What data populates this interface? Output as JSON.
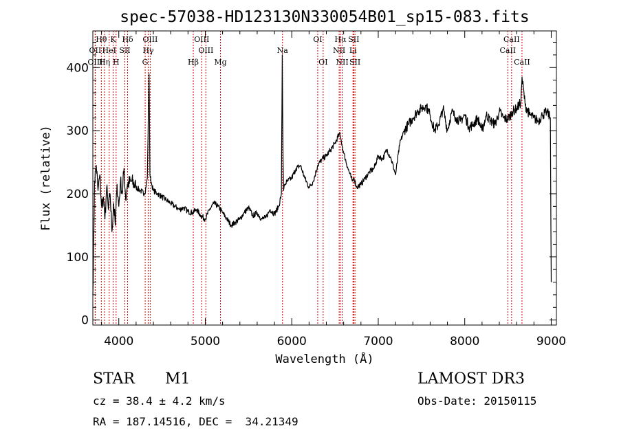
{
  "chart_data": {
    "type": "line",
    "title": "spec-57038-HD123130N330054B01_sp15-083.fits",
    "xlabel": "Wavelength (Å)",
    "ylabel": "Flux (relative)",
    "xlim": [
      3700,
      9060
    ],
    "ylim": [
      -8,
      458
    ],
    "xticks": [
      4000,
      5000,
      6000,
      7000,
      8000,
      9000
    ],
    "yticks": [
      0,
      100,
      200,
      300,
      400
    ],
    "grid": false,
    "series": [
      {
        "x": [
          3700,
          3720,
          3740,
          3760,
          3780,
          3800,
          3820,
          3840,
          3860,
          3880,
          3900,
          3920,
          3940,
          3960,
          3980,
          4000,
          4020,
          4040,
          4060,
          4080,
          4100,
          4150,
          4200,
          4250,
          4300,
          4330,
          4350,
          4360,
          4380,
          4400,
          4450,
          4500,
          4550,
          4600,
          4650,
          4700,
          4750,
          4800,
          4850,
          4900,
          4950,
          5000,
          5050,
          5100,
          5150,
          5200,
          5250,
          5300,
          5350,
          5400,
          5450,
          5500,
          5550,
          5600,
          5650,
          5700,
          5750,
          5800,
          5850,
          5880,
          5890,
          5895,
          5900,
          5905,
          5910,
          5920,
          5950,
          6000,
          6050,
          6100,
          6150,
          6200,
          6250,
          6300,
          6350,
          6400,
          6450,
          6500,
          6550,
          6563,
          6600,
          6650,
          6700,
          6720,
          6750,
          6800,
          6850,
          6900,
          6950,
          7000,
          7050,
          7100,
          7150,
          7200,
          7250,
          7300,
          7350,
          7400,
          7450,
          7500,
          7550,
          7600,
          7650,
          7700,
          7750,
          7800,
          7850,
          7900,
          7950,
          8000,
          8050,
          8100,
          8150,
          8200,
          8250,
          8300,
          8350,
          8400,
          8450,
          8500,
          8550,
          8600,
          8650,
          8662,
          8700,
          8750,
          8800,
          8850,
          8900,
          8950,
          8990,
          9000
        ],
        "y": [
          40,
          220,
          245,
          205,
          230,
          180,
          195,
          160,
          210,
          175,
          200,
          140,
          185,
          150,
          215,
          180,
          220,
          200,
          240,
          190,
          215,
          220,
          210,
          205,
          200,
          225,
          390,
          230,
          215,
          205,
          200,
          195,
          190,
          185,
          180,
          175,
          178,
          172,
          170,
          175,
          165,
          160,
          175,
          185,
          180,
          170,
          160,
          150,
          155,
          160,
          170,
          178,
          165,
          170,
          160,
          162,
          175,
          168,
          180,
          200,
          420,
          330,
          250,
          205,
          210,
          215,
          220,
          225,
          240,
          245,
          225,
          210,
          220,
          245,
          255,
          260,
          270,
          280,
          295,
          290,
          265,
          240,
          220,
          225,
          210,
          215,
          225,
          235,
          240,
          260,
          255,
          270,
          255,
          230,
          280,
          300,
          310,
          320,
          330,
          335,
          340,
          325,
          300,
          310,
          335,
          300,
          330,
          320,
          315,
          325,
          305,
          310,
          320,
          300,
          325,
          315,
          310,
          330,
          320,
          318,
          330,
          335,
          345,
          385,
          340,
          325,
          320,
          315,
          325,
          330,
          320,
          60
        ]
      }
    ],
    "lines": [
      {
        "name": "Hθ",
        "wave": 3798,
        "row": 1
      },
      {
        "name": "K",
        "wave": 3934,
        "row": 1
      },
      {
        "name": "Hδ",
        "wave": 4102,
        "row": 1
      },
      {
        "name": "OIII",
        "wave": 4363,
        "row": 1
      },
      {
        "name": "OIII",
        "wave": 4959,
        "row": 1
      },
      {
        "name": "OI",
        "wave": 6300,
        "row": 1
      },
      {
        "name": "Hα",
        "wave": 6563,
        "row": 1
      },
      {
        "name": "SII",
        "wave": 6717,
        "row": 1
      },
      {
        "name": "CaII",
        "wave": 8542,
        "row": 1
      },
      {
        "name": "OII",
        "wave": 3727,
        "row": 2
      },
      {
        "name": "HeI",
        "wave": 3889,
        "row": 2
      },
      {
        "name": "SII",
        "wave": 4070,
        "row": 2
      },
      {
        "name": "Hγ",
        "wave": 4340,
        "row": 2
      },
      {
        "name": "OIII",
        "wave": 5007,
        "row": 2
      },
      {
        "name": "Na",
        "wave": 5893,
        "row": 2
      },
      {
        "name": "NII",
        "wave": 6548,
        "row": 2
      },
      {
        "name": "Li",
        "wave": 6708,
        "row": 2
      },
      {
        "name": "CaII",
        "wave": 8498,
        "row": 2
      },
      {
        "name": "OIII",
        "wave": 3727,
        "row": 3
      },
      {
        "name": "Hη",
        "wave": 3835,
        "row": 3
      },
      {
        "name": "H",
        "wave": 3969,
        "row": 3
      },
      {
        "name": "G",
        "wave": 4305,
        "row": 3
      },
      {
        "name": "Hβ",
        "wave": 4861,
        "row": 3
      },
      {
        "name": "Mg",
        "wave": 5175,
        "row": 3
      },
      {
        "name": "OI",
        "wave": 6363,
        "row": 3
      },
      {
        "name": "NII",
        "wave": 6583,
        "row": 3
      },
      {
        "name": "SII",
        "wave": 6731,
        "row": 3
      },
      {
        "name": "CaII",
        "wave": 8662,
        "row": 3
      }
    ]
  },
  "info": {
    "object_class": "STAR",
    "subclass": "M1",
    "survey": "LAMOST DR3",
    "cz": "cz = 38.4 ± 4.2 km/s",
    "obs_date": "Obs-Date: 20150115",
    "coords": "RA = 187.14516, DEC =  34.21349"
  },
  "colors": {
    "spectrum": "#000000",
    "line_markers": "#cc0000",
    "background": "#ffffff"
  }
}
